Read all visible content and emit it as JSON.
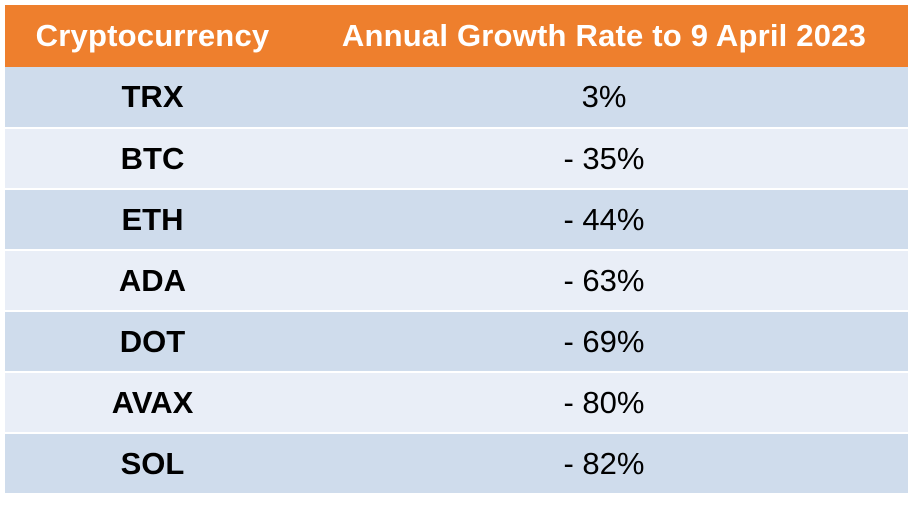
{
  "chart_data": {
    "type": "table",
    "columns": [
      "Cryptocurrency",
      "Annual Growth Rate to 9 April 2023"
    ],
    "rows": [
      {
        "coin": "TRX",
        "rate": "3%"
      },
      {
        "coin": "BTC",
        "rate": "- 35%"
      },
      {
        "coin": "ETH",
        "rate": "- 44%"
      },
      {
        "coin": "ADA",
        "rate": "- 63%"
      },
      {
        "coin": "DOT",
        "rate": "- 69%"
      },
      {
        "coin": "AVAX",
        "rate": "- 80%"
      },
      {
        "coin": "SOL",
        "rate": "- 82%"
      }
    ],
    "values": [
      3,
      -35,
      -44,
      -63,
      -69,
      -80,
      -82
    ]
  },
  "colors": {
    "header_bg": "#ee7f2d",
    "row_odd_bg": "#cfdcec",
    "row_even_bg": "#e9eef7"
  }
}
